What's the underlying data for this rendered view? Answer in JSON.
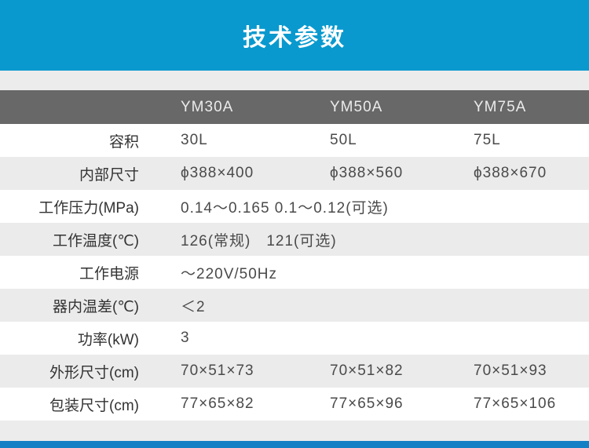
{
  "banner": {
    "title": "技术参数"
  },
  "colors": {
    "banner_blue": "#0999ce",
    "footer_blue": "#137fc4",
    "table_head_bg": "#686868",
    "row_alt_bg": "#ebebeb",
    "gap_strip": "#ececec"
  },
  "table": {
    "columns": [
      "",
      "YM30A",
      "YM50A",
      "YM75A"
    ],
    "rows": [
      {
        "label": "容积",
        "v1": "30L",
        "v2": "50L",
        "v3": "75L"
      },
      {
        "label": "内部尺寸",
        "v1": "ϕ388×400",
        "v2": "ϕ388×560",
        "v3": "ϕ388×670"
      },
      {
        "label": "工作压力(MPa)",
        "span": "0.14～0.165 0.1～0.12(可选)"
      },
      {
        "label": "工作温度(℃)",
        "span": "126(常规)　121(可选)"
      },
      {
        "label": "工作电源",
        "span": "～220V/50Hz"
      },
      {
        "label": "器内温差(℃)",
        "span": "＜2"
      },
      {
        "label": "功率(kW)",
        "span": "3"
      },
      {
        "label": "外形尺寸(cm)",
        "v1": "70×51×73",
        "v2": "70×51×82",
        "v3": "70×51×93"
      },
      {
        "label": "包装尺寸(cm)",
        "v1": "77×65×82",
        "v2": "77×65×96",
        "v3": "77×65×106"
      }
    ]
  }
}
